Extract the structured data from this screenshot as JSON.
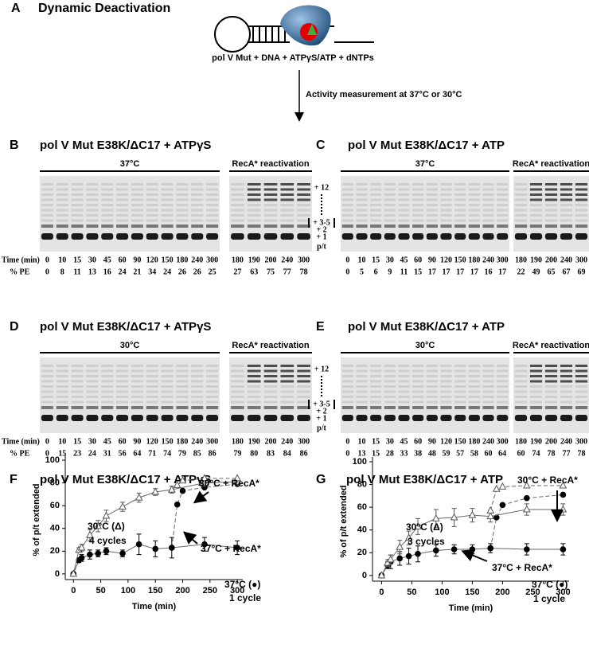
{
  "panel_a": {
    "label": "A",
    "title": "Dynamic Deactivation",
    "reaction": "pol V Mut  + DNA + ATPγS/ATP + dNTPs",
    "arrow_label": "Activity measurement at 37°C or 30°C"
  },
  "gels": [
    {
      "label": "B",
      "title": "pol V Mut E38K/ΔC17 + ATPγS",
      "temperature": "37°C",
      "reactivation": "RecA* reactivation",
      "time_label": "Time (min)",
      "pe_label": "% PE",
      "times": [
        "0",
        "10",
        "15",
        "30",
        "45",
        "60",
        "90",
        "120",
        "150",
        "180",
        "240",
        "300",
        "180",
        "190",
        "200",
        "240",
        "300"
      ],
      "pe": [
        "0",
        "8",
        "11",
        "13",
        "16",
        "24",
        "21",
        "34",
        "24",
        "26",
        "26",
        "25",
        "27",
        "63",
        "75",
        "77",
        "78"
      ],
      "band_labels": [
        "+ 12",
        "+ 3-5",
        "+ 2",
        "+ 1",
        "p/t"
      ]
    },
    {
      "label": "C",
      "title": "pol V Mut E38K/ΔC17 + ATP",
      "temperature": "37°C",
      "reactivation": "RecA* reactivation",
      "times": [
        "0",
        "10",
        "15",
        "30",
        "45",
        "60",
        "90",
        "120",
        "150",
        "180",
        "240",
        "300",
        "180",
        "190",
        "200",
        "240",
        "300"
      ],
      "pe": [
        "0",
        "5",
        "6",
        "9",
        "11",
        "15",
        "17",
        "17",
        "17",
        "17",
        "16",
        "17",
        "22",
        "49",
        "65",
        "67",
        "69"
      ]
    },
    {
      "label": "D",
      "title": "pol V Mut E38K/ΔC17 + ATPγS",
      "temperature": "30°C",
      "reactivation": "RecA* reactivation",
      "time_label": "Time (min)",
      "pe_label": "% PE",
      "times": [
        "0",
        "10",
        "15",
        "30",
        "45",
        "60",
        "90",
        "120",
        "150",
        "180",
        "240",
        "300",
        "180",
        "190",
        "200",
        "240",
        "300"
      ],
      "pe": [
        "0",
        "15",
        "23",
        "24",
        "31",
        "56",
        "64",
        "71",
        "74",
        "79",
        "85",
        "86",
        "79",
        "80",
        "83",
        "84",
        "86"
      ],
      "band_labels": [
        "+ 12",
        "+ 3-5",
        "+ 2",
        "+ 1",
        "p/t"
      ]
    },
    {
      "label": "E",
      "title": "pol V Mut E38K/ΔC17 + ATP",
      "temperature": "30°C",
      "reactivation": "RecA* reactivation",
      "times": [
        "0",
        "10",
        "15",
        "30",
        "45",
        "60",
        "90",
        "120",
        "150",
        "180",
        "240",
        "300",
        "180",
        "190",
        "200",
        "240",
        "300"
      ],
      "pe": [
        "0",
        "13",
        "15",
        "28",
        "33",
        "38",
        "48",
        "59",
        "57",
        "58",
        "60",
        "64",
        "60",
        "74",
        "78",
        "77",
        "78"
      ]
    }
  ],
  "chart_data": [
    {
      "type": "scatter",
      "label": "F",
      "title": "pol V Mut E38K/ΔC17 + ATPγS",
      "x_label": "Time (min)",
      "y_label": "% of p/t extended",
      "xlim": [
        -15,
        310
      ],
      "ylim": [
        -5,
        100
      ],
      "xticks": [
        0,
        50,
        100,
        150,
        200,
        250,
        300
      ],
      "yticks": [
        0,
        20,
        40,
        60,
        80,
        100
      ],
      "series": [
        {
          "marker": "circle",
          "color": "#000000",
          "line_style": "solid",
          "x": [
            0,
            10,
            15,
            30,
            45,
            60,
            90,
            120,
            150,
            180,
            240,
            300
          ],
          "values": [
            0,
            12,
            14,
            17,
            18,
            20,
            18,
            26,
            22,
            23,
            26,
            23
          ],
          "errors": [
            0,
            2,
            3,
            4,
            3,
            3,
            3,
            9,
            7,
            9,
            6,
            6
          ]
        },
        {
          "marker": "circle",
          "color": "#000000",
          "line_style": "dashed",
          "x": [
            180,
            190,
            200,
            240,
            300
          ],
          "values": [
            23,
            61,
            73,
            76,
            79
          ]
        },
        {
          "marker": "triangle",
          "color": "#555555",
          "line_style": "solid",
          "x": [
            0,
            10,
            15,
            30,
            45,
            60,
            90,
            120,
            150,
            180,
            240,
            300
          ],
          "values": [
            0,
            21,
            23,
            34,
            42,
            51,
            59,
            67,
            72,
            74,
            80,
            81
          ],
          "errors": [
            0,
            2,
            3,
            5,
            5,
            5,
            4,
            4,
            3,
            3,
            3,
            3
          ]
        },
        {
          "marker": "triangle",
          "color": "#555555",
          "line_style": "dashed",
          "x": [
            180,
            190,
            200,
            240,
            300
          ],
          "values": [
            74,
            78,
            82,
            84,
            84
          ]
        }
      ],
      "annotations": [
        "30°C (Δ)",
        "4 cycles",
        "30°C + RecA*",
        "37°C + RecA*",
        "37°C (●)",
        "1 cycle"
      ]
    },
    {
      "type": "scatter",
      "label": "G",
      "title": "pol V Mut E38K/ΔC17 + ATP",
      "x_label": "Time (min)",
      "y_label": "% of p/t extended",
      "xlim": [
        -15,
        310
      ],
      "ylim": [
        -5,
        100
      ],
      "xticks": [
        0,
        50,
        100,
        150,
        200,
        250,
        300
      ],
      "yticks": [
        0,
        20,
        40,
        60,
        80,
        100
      ],
      "series": [
        {
          "marker": "circle",
          "color": "#000000",
          "line_style": "solid",
          "x": [
            0,
            10,
            15,
            30,
            45,
            60,
            90,
            120,
            150,
            180,
            240,
            300
          ],
          "values": [
            0,
            9,
            12,
            15,
            17,
            19,
            22,
            23,
            23,
            24,
            23,
            23
          ],
          "errors": [
            0,
            3,
            6,
            6,
            7,
            7,
            5,
            4,
            4,
            4,
            5,
            5
          ]
        },
        {
          "marker": "circle",
          "color": "#000000",
          "line_style": "dashed",
          "x": [
            180,
            190,
            200,
            240,
            300
          ],
          "values": [
            24,
            51,
            62,
            68,
            71
          ]
        },
        {
          "marker": "triangle",
          "color": "#555555",
          "line_style": "solid",
          "x": [
            0,
            10,
            15,
            30,
            45,
            60,
            90,
            120,
            150,
            180,
            240,
            300
          ],
          "values": [
            0,
            11,
            14,
            25,
            33,
            43,
            50,
            51,
            53,
            52,
            58,
            58
          ],
          "errors": [
            0,
            3,
            4,
            6,
            6,
            7,
            8,
            8,
            6,
            5,
            5,
            5
          ]
        },
        {
          "marker": "triangle",
          "color": "#555555",
          "line_style": "dashed",
          "x": [
            180,
            190,
            200,
            240,
            300
          ],
          "values": [
            57,
            76,
            78,
            79,
            79
          ]
        }
      ],
      "annotations": [
        "30°C (Δ)",
        "3 cycles",
        "30°C + RecA*",
        "37°C + RecA*",
        "37°C (●)",
        "1 cycle"
      ]
    }
  ]
}
